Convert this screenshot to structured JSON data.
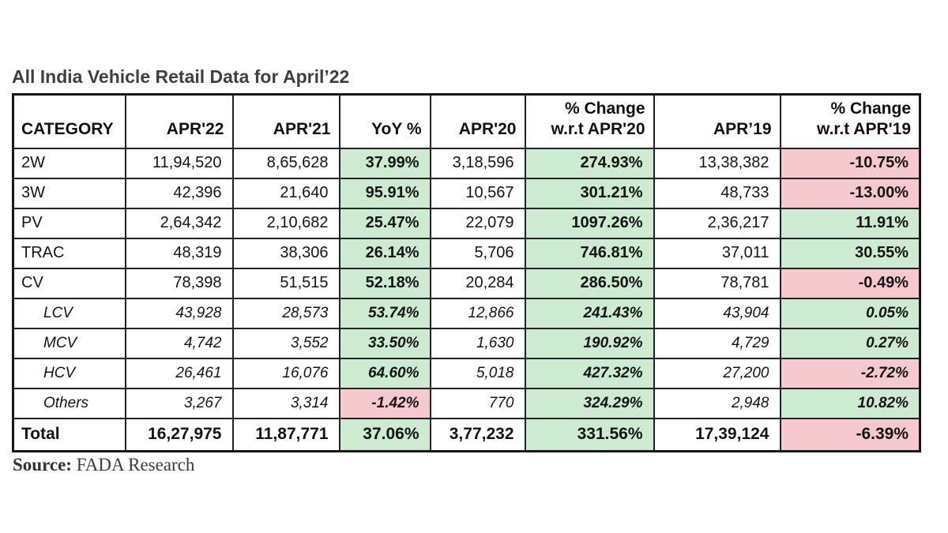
{
  "title": "All India Vehicle Retail Data for April’22",
  "source": {
    "label": "Source:",
    "text": "FADA Research"
  },
  "colors": {
    "positive_bg": "#cdebd0",
    "positive_text": "#1d7324",
    "negative_bg": "#f6c9ce",
    "negative_text": "#9b101e",
    "title_text": "#3f3f3f",
    "border": "#161616"
  },
  "chart_data": {
    "type": "table",
    "title": "All India Vehicle Retail Data for April’22",
    "columns": [
      {
        "key": "category",
        "lines": [
          "CATEGORY"
        ]
      },
      {
        "key": "apr22",
        "lines": [
          "APR'22"
        ]
      },
      {
        "key": "apr21",
        "lines": [
          "APR'21"
        ]
      },
      {
        "key": "yoy",
        "lines": [
          "YoY %"
        ]
      },
      {
        "key": "apr20",
        "lines": [
          "APR'20"
        ]
      },
      {
        "key": "chg-apr20",
        "lines": [
          "% Change",
          "w.r.t APR'20"
        ]
      },
      {
        "key": "apr19",
        "lines": [
          "APR’19"
        ]
      },
      {
        "key": "chg-apr19",
        "lines": [
          "% Change",
          "w.r.t APR'19"
        ]
      }
    ],
    "rows": [
      {
        "category": "2W",
        "style": "main",
        "values": [
          "11,94,520",
          "8,65,628",
          "37.99%",
          "3,18,596",
          "274.93%",
          "13,38,382",
          "-10.75%"
        ]
      },
      {
        "category": "3W",
        "style": "main",
        "values": [
          "42,396",
          "21,640",
          "95.91%",
          "10,567",
          "301.21%",
          "48,733",
          "-13.00%"
        ]
      },
      {
        "category": "PV",
        "style": "main",
        "values": [
          "2,64,342",
          "2,10,682",
          "25.47%",
          "22,079",
          "1097.26%",
          "2,36,217",
          "11.91%"
        ]
      },
      {
        "category": "TRAC",
        "style": "main",
        "values": [
          "48,319",
          "38,306",
          "26.14%",
          "5,706",
          "746.81%",
          "37,011",
          "30.55%"
        ]
      },
      {
        "category": "CV",
        "style": "main",
        "values": [
          "78,398",
          "51,515",
          "52.18%",
          "20,284",
          "286.50%",
          "78,781",
          "-0.49%"
        ]
      },
      {
        "category": "LCV",
        "style": "sub",
        "values": [
          "43,928",
          "28,573",
          "53.74%",
          "12,866",
          "241.43%",
          "43,904",
          "0.05%"
        ]
      },
      {
        "category": "MCV",
        "style": "sub",
        "values": [
          "4,742",
          "3,552",
          "33.50%",
          "1,630",
          "190.92%",
          "4,729",
          "0.27%"
        ]
      },
      {
        "category": "HCV",
        "style": "sub",
        "values": [
          "26,461",
          "16,076",
          "64.60%",
          "5,018",
          "427.32%",
          "27,200",
          "-2.72%"
        ]
      },
      {
        "category": "Others",
        "style": "sub",
        "values": [
          "3,267",
          "3,314",
          "-1.42%",
          "770",
          "324.29%",
          "2,948",
          "10.82%"
        ]
      },
      {
        "category": "Total",
        "style": "total",
        "values": [
          "16,27,975",
          "11,87,771",
          "37.06%",
          "3,77,232",
          "331.56%",
          "17,39,124",
          "-6.39%"
        ]
      }
    ]
  }
}
